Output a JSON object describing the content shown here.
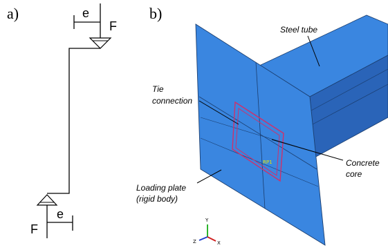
{
  "panel_a": {
    "label": "a)",
    "top": {
      "eccentricity": "e",
      "force": "F"
    },
    "bottom": {
      "force": "F",
      "eccentricity": "e"
    }
  },
  "panel_b": {
    "label": "b)",
    "annotations": {
      "steel_tube": "Steel tube",
      "tie_connection": [
        "Tie",
        "connection"
      ],
      "concrete_core": [
        "Concrete",
        "core"
      ],
      "loading_plate": [
        "Loading plate",
        "(rigid body)"
      ]
    },
    "reference_point": "RP1",
    "axes": {
      "y": "Y",
      "z": "Z",
      "x": "X"
    }
  }
}
